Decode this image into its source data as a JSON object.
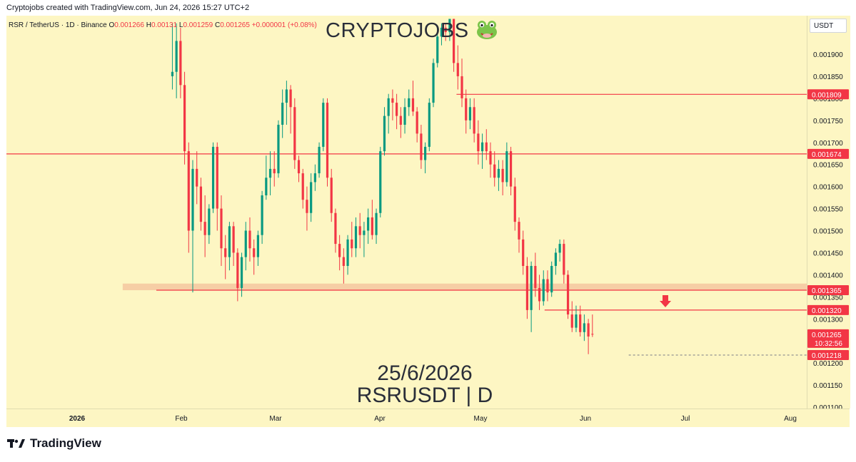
{
  "header": {
    "credit": "Cryptojobs created with TradingView.com, Jun 24, 2026 15:27 UTC+2"
  },
  "legend": {
    "symbol": "RSR / TetherUS · 1D · Binance",
    "open_label": "O",
    "open": "0.001266",
    "high_label": "H",
    "high": "0.00131",
    "low_label": "L",
    "low": "0.001259",
    "close_label": "C",
    "close": "0.001265",
    "change": "+0.000001 (+0.08%)"
  },
  "watermark": {
    "brand": "CRYPTOJOBS",
    "date": "25/6/2026",
    "ticker": "RSRUSDT | D"
  },
  "footer": {
    "brand": "TradingView"
  },
  "currency": "USDT",
  "colors": {
    "up": "#089981",
    "down": "#f23645",
    "background": "#fdf6c3",
    "zone": "#f4c7a0"
  },
  "chart_data": {
    "type": "candlestick",
    "symbol": "RSRUSDT",
    "interval": "1D",
    "ylim": [
      0.0011,
      0.00195
    ],
    "y_ticks": [
      "0.001900",
      "0.001850",
      "0.001800",
      "0.001750",
      "0.001700",
      "0.001650",
      "0.001600",
      "0.001550",
      "0.001500",
      "0.001450",
      "0.001400",
      "0.001350",
      "0.001300",
      "0.001250",
      "0.001200",
      "0.001150",
      "0.001100"
    ],
    "x_ticks": [
      {
        "label": "2026",
        "day": -30
      },
      {
        "label": "Feb",
        "day": 1
      },
      {
        "label": "Mar",
        "day": 29
      },
      {
        "label": "Apr",
        "day": 60
      },
      {
        "label": "May",
        "day": 90
      },
      {
        "label": "Jun",
        "day": 121
      },
      {
        "label": "Jul",
        "day": 151
      },
      {
        "label": "Aug",
        "day": 182
      }
    ],
    "price_labels": [
      {
        "price": 0.001809,
        "text": "0.001809"
      },
      {
        "price": 0.001674,
        "text": "0.001674"
      },
      {
        "price": 0.001365,
        "text": "0.001365"
      },
      {
        "price": 0.00132,
        "text": "0.001320"
      },
      {
        "price": 0.001265,
        "text": "0.001265",
        "sub": "10:32:56"
      },
      {
        "price": 0.001218,
        "text": "0.001218"
      }
    ],
    "horizontal_lines": [
      {
        "price": 0.001674,
        "from_day": -50,
        "to_day": 200
      },
      {
        "price": 0.001809,
        "from_day": 99,
        "to_day": 200
      },
      {
        "price": 0.001365,
        "from_day": 7,
        "to_day": 200
      },
      {
        "price": 0.00132,
        "from_day": 126,
        "to_day": 200
      }
    ],
    "zone": {
      "from": 0.001365,
      "to": 0.00138,
      "from_day": -2,
      "to_day": 200
    },
    "dashed_line": {
      "price": 0.001218,
      "from_day": 138,
      "to_day": 200
    },
    "arrow": {
      "day": 144,
      "price": 0.00134
    },
    "candles": [
      [
        0.00185,
        0.00197,
        0.00182,
        0.00186
      ],
      [
        0.00186,
        0.00199,
        0.0018,
        0.00193
      ],
      [
        0.00193,
        0.00196,
        0.0018,
        0.00183
      ],
      [
        0.00183,
        0.00186,
        0.00165,
        0.00168
      ],
      [
        0.00168,
        0.0017,
        0.00145,
        0.0015
      ],
      [
        0.0015,
        0.00166,
        0.00136,
        0.00164
      ],
      [
        0.00164,
        0.00168,
        0.00156,
        0.0016
      ],
      [
        0.0016,
        0.00162,
        0.0015,
        0.00152
      ],
      [
        0.00152,
        0.00158,
        0.00144,
        0.00149
      ],
      [
        0.00149,
        0.00156,
        0.00147,
        0.00155
      ],
      [
        0.00155,
        0.0017,
        0.00154,
        0.00169
      ],
      [
        0.00169,
        0.0017,
        0.0015,
        0.00155
      ],
      [
        0.00155,
        0.00158,
        0.00142,
        0.00146
      ],
      [
        0.00146,
        0.00149,
        0.00139,
        0.00144
      ],
      [
        0.00144,
        0.00152,
        0.00141,
        0.00151
      ],
      [
        0.00151,
        0.00152,
        0.00142,
        0.00145
      ],
      [
        0.00145,
        0.00146,
        0.00134,
        0.00137
      ],
      [
        0.00137,
        0.00145,
        0.00135,
        0.00144
      ],
      [
        0.00144,
        0.00152,
        0.00141,
        0.0015
      ],
      [
        0.0015,
        0.00153,
        0.00143,
        0.00146
      ],
      [
        0.00146,
        0.00148,
        0.0014,
        0.00144
      ],
      [
        0.00144,
        0.0015,
        0.00142,
        0.00149
      ],
      [
        0.00149,
        0.00159,
        0.00147,
        0.00158
      ],
      [
        0.00158,
        0.00167,
        0.00157,
        0.00162
      ],
      [
        0.00162,
        0.00168,
        0.00158,
        0.00164
      ],
      [
        0.00164,
        0.00168,
        0.0016,
        0.00163
      ],
      [
        0.00163,
        0.00175,
        0.00162,
        0.00174
      ],
      [
        0.00174,
        0.00182,
        0.00171,
        0.00179
      ],
      [
        0.00179,
        0.00184,
        0.00174,
        0.00182
      ],
      [
        0.00182,
        0.00183,
        0.00172,
        0.00178
      ],
      [
        0.00178,
        0.0018,
        0.00164,
        0.00166
      ],
      [
        0.00166,
        0.00167,
        0.00161,
        0.00163
      ],
      [
        0.00163,
        0.00164,
        0.00155,
        0.00157
      ],
      [
        0.00157,
        0.0016,
        0.0015,
        0.00154
      ],
      [
        0.00154,
        0.00163,
        0.00152,
        0.00161
      ],
      [
        0.00161,
        0.00165,
        0.00159,
        0.00163
      ],
      [
        0.00163,
        0.0017,
        0.00162,
        0.00169
      ],
      [
        0.00169,
        0.0018,
        0.00168,
        0.00179
      ],
      [
        0.00179,
        0.0018,
        0.0016,
        0.00162
      ],
      [
        0.00162,
        0.00164,
        0.00152,
        0.00154
      ],
      [
        0.00154,
        0.00155,
        0.00145,
        0.00147
      ],
      [
        0.00147,
        0.00149,
        0.00141,
        0.00144
      ],
      [
        0.00144,
        0.00146,
        0.00138,
        0.00142
      ],
      [
        0.00142,
        0.00149,
        0.0014,
        0.00148
      ],
      [
        0.00148,
        0.00152,
        0.00144,
        0.00146
      ],
      [
        0.00146,
        0.00153,
        0.00144,
        0.00151
      ],
      [
        0.00151,
        0.00154,
        0.00146,
        0.00149
      ],
      [
        0.00149,
        0.00152,
        0.00144,
        0.0015
      ],
      [
        0.0015,
        0.00155,
        0.00147,
        0.00153
      ],
      [
        0.00153,
        0.00157,
        0.00148,
        0.00149
      ],
      [
        0.00149,
        0.00155,
        0.00147,
        0.00154
      ],
      [
        0.00154,
        0.00169,
        0.00153,
        0.00168
      ],
      [
        0.00168,
        0.00178,
        0.00167,
        0.00176
      ],
      [
        0.00176,
        0.00181,
        0.00172,
        0.0018
      ],
      [
        0.0018,
        0.00182,
        0.00175,
        0.00179
      ],
      [
        0.00179,
        0.00181,
        0.00173,
        0.00176
      ],
      [
        0.00176,
        0.00178,
        0.00171,
        0.00174
      ],
      [
        0.00174,
        0.0018,
        0.00172,
        0.00178
      ],
      [
        0.00178,
        0.00182,
        0.00176,
        0.0018
      ],
      [
        0.0018,
        0.00184,
        0.00176,
        0.00177
      ],
      [
        0.00177,
        0.00178,
        0.0017,
        0.00172
      ],
      [
        0.00172,
        0.00174,
        0.00164,
        0.00166
      ],
      [
        0.00166,
        0.0017,
        0.00163,
        0.00169
      ],
      [
        0.00169,
        0.0018,
        0.00168,
        0.00179
      ],
      [
        0.00179,
        0.00189,
        0.00178,
        0.00188
      ],
      [
        0.00188,
        0.00196,
        0.00187,
        0.00194
      ],
      [
        0.00194,
        0.00199,
        0.00192,
        0.00196
      ],
      [
        0.00196,
        0.00199,
        0.00193,
        0.00195
      ],
      [
        0.00195,
        0.00199,
        0.00193,
        0.00198
      ],
      [
        0.00198,
        0.00199,
        0.00186,
        0.00188
      ],
      [
        0.00188,
        0.00192,
        0.00182,
        0.00185
      ],
      [
        0.00185,
        0.00189,
        0.00178,
        0.0018
      ],
      [
        0.0018,
        0.00182,
        0.00172,
        0.00175
      ],
      [
        0.00175,
        0.0018,
        0.00173,
        0.00178
      ],
      [
        0.00178,
        0.0018,
        0.0017,
        0.00172
      ],
      [
        0.00172,
        0.00175,
        0.00165,
        0.00168
      ],
      [
        0.00168,
        0.00172,
        0.00164,
        0.0017
      ],
      [
        0.0017,
        0.00173,
        0.00166,
        0.00168
      ],
      [
        0.00168,
        0.0017,
        0.00162,
        0.00165
      ],
      [
        0.00165,
        0.00168,
        0.0016,
        0.00162
      ],
      [
        0.00162,
        0.00166,
        0.00159,
        0.00164
      ],
      [
        0.00164,
        0.00166,
        0.00158,
        0.00161
      ],
      [
        0.00161,
        0.0017,
        0.0016,
        0.00168
      ],
      [
        0.00168,
        0.00169,
        0.00158,
        0.0016
      ],
      [
        0.0016,
        0.00162,
        0.0015,
        0.00152
      ],
      [
        0.00152,
        0.00153,
        0.00145,
        0.00148
      ],
      [
        0.00148,
        0.0015,
        0.0014,
        0.00142
      ],
      [
        0.00142,
        0.00144,
        0.0013,
        0.00132
      ],
      [
        0.00132,
        0.00143,
        0.00127,
        0.00142
      ],
      [
        0.00142,
        0.00145,
        0.00135,
        0.00137
      ],
      [
        0.00137,
        0.0014,
        0.00132,
        0.00134
      ],
      [
        0.00134,
        0.00141,
        0.00133,
        0.00139
      ],
      [
        0.00139,
        0.00141,
        0.00134,
        0.00136
      ],
      [
        0.00136,
        0.00143,
        0.00135,
        0.00142
      ],
      [
        0.00142,
        0.00146,
        0.0014,
        0.00145
      ],
      [
        0.00145,
        0.00148,
        0.00143,
        0.00147
      ],
      [
        0.00147,
        0.00148,
        0.00138,
        0.0014
      ],
      [
        0.0014,
        0.00141,
        0.0013,
        0.00131
      ],
      [
        0.00131,
        0.00134,
        0.00127,
        0.00128
      ],
      [
        0.00128,
        0.00133,
        0.00127,
        0.00131
      ],
      [
        0.00131,
        0.00133,
        0.00126,
        0.00127
      ],
      [
        0.00127,
        0.00131,
        0.00125,
        0.00129
      ],
      [
        0.00129,
        0.0013,
        0.00122,
        0.00126
      ],
      [
        0.001266,
        0.00131,
        0.001259,
        0.001265
      ]
    ]
  }
}
